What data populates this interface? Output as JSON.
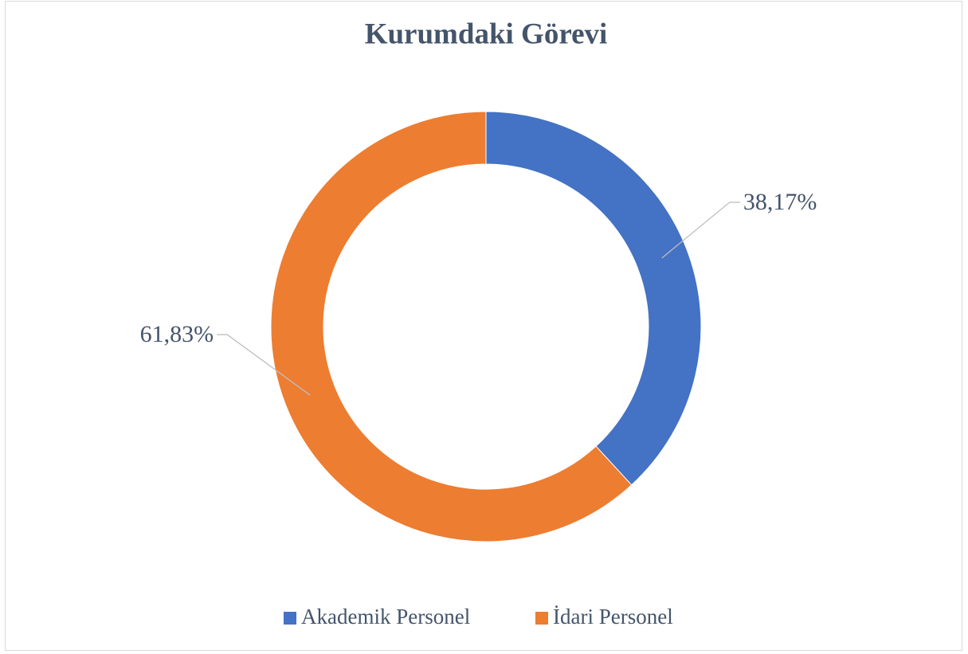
{
  "chart_data": {
    "type": "donut",
    "title": "Kurumdaki Görevi",
    "categories": [
      "Akademik Personel",
      "İdari Personel"
    ],
    "values": [
      38.17,
      61.83
    ],
    "value_labels": [
      "38,17%",
      "61,83%"
    ],
    "colors": [
      "#4472c4",
      "#ed7d31"
    ],
    "legend": "bottom"
  }
}
